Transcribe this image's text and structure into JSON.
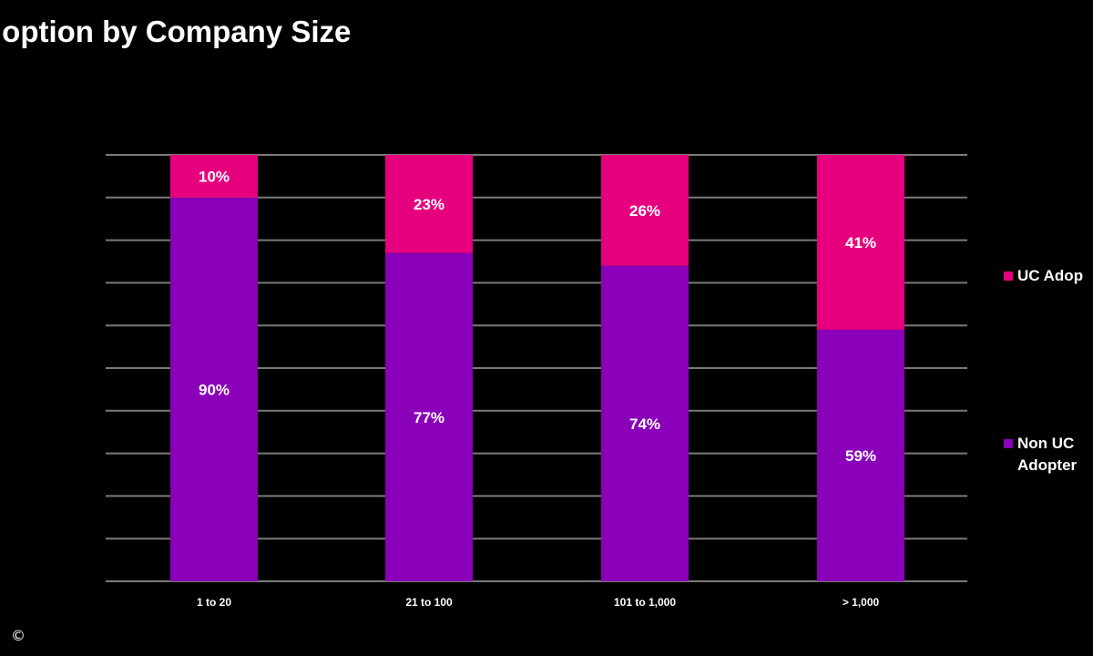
{
  "title": "doption by Company Size",
  "copyright": "©",
  "colors": {
    "background": "#000000",
    "gridline": "#7a7a7a",
    "text": "#ffffff"
  },
  "chart_data": {
    "type": "bar",
    "stacked": true,
    "categories": [
      "1 to 20",
      "21 to 100",
      "101 to 1,000",
      "> 1,000"
    ],
    "series": [
      {
        "name": "Non UC Adopter",
        "legend_lines": [
          "Non UC",
          "Adopter"
        ],
        "color": "#8a00b8",
        "values": [
          90,
          77,
          74,
          59
        ],
        "labels": [
          "90%",
          "77%",
          "74%",
          "59%"
        ]
      },
      {
        "name": "UC Adop",
        "legend_lines": [
          "UC Adop"
        ],
        "color": "#e6007e",
        "values": [
          10,
          23,
          26,
          41
        ],
        "labels": [
          "10%",
          "23%",
          "26%",
          "41%"
        ]
      }
    ],
    "ylim": [
      0,
      100
    ],
    "grid": true,
    "legend_position": "right"
  }
}
